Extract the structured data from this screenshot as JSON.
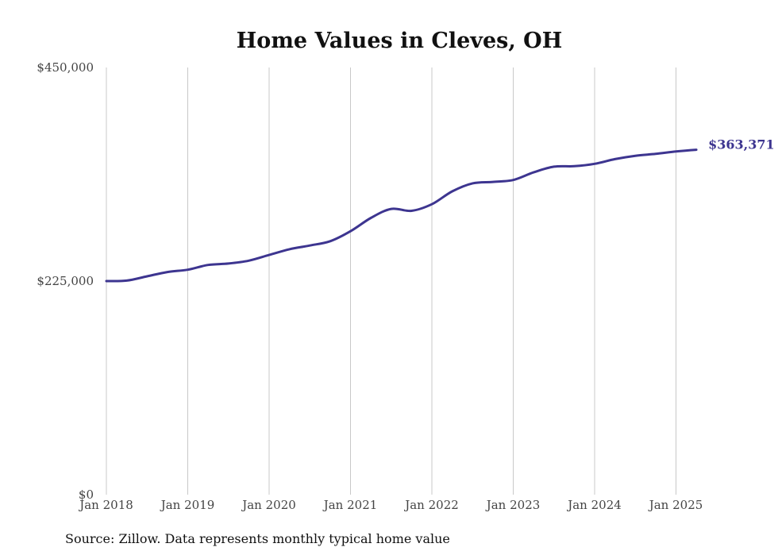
{
  "chart_data": {
    "type": "line",
    "title": "Home Values in Cleves, OH",
    "source": "Source: Zillow. Data represents monthly typical home value",
    "line_color": "#3d3590",
    "y_ticks": [
      {
        "value": 0,
        "label": "$0"
      },
      {
        "value": 225000,
        "label": "$225,000"
      },
      {
        "value": 450000,
        "label": "$450,000"
      }
    ],
    "x_ticks": [
      {
        "value": 2018,
        "label": "Jan 2018"
      },
      {
        "value": 2019,
        "label": "Jan 2019"
      },
      {
        "value": 2020,
        "label": "Jan 2020"
      },
      {
        "value": 2021,
        "label": "Jan 2021"
      },
      {
        "value": 2022,
        "label": "Jan 2022"
      },
      {
        "value": 2023,
        "label": "Jan 2023"
      },
      {
        "value": 2024,
        "label": "Jan 2024"
      },
      {
        "value": 2025,
        "label": "Jan 2025"
      }
    ],
    "ylim": [
      0,
      450000
    ],
    "xlim": [
      2018,
      2025.25
    ],
    "grid": "vertical",
    "end_label": "$363,371",
    "series": [
      {
        "x": [
          2018.0,
          2018.25,
          2018.5,
          2018.75,
          2019.0,
          2019.25,
          2019.5,
          2019.75,
          2020.0,
          2020.25,
          2020.5,
          2020.75,
          2021.0,
          2021.25,
          2021.5,
          2021.75,
          2022.0,
          2022.25,
          2022.5,
          2022.75,
          2023.0,
          2023.25,
          2023.5,
          2023.75,
          2024.0,
          2024.25,
          2024.5,
          2024.75,
          2025.0,
          2025.25
        ],
        "y": [
          225000,
          225500,
          230000,
          234500,
          237000,
          242000,
          243500,
          246500,
          252500,
          258500,
          262500,
          267000,
          277500,
          291500,
          301000,
          299000,
          306000,
          319500,
          328000,
          329500,
          331500,
          339500,
          345500,
          346000,
          348500,
          353500,
          357000,
          359000,
          361500,
          363371
        ]
      }
    ]
  }
}
